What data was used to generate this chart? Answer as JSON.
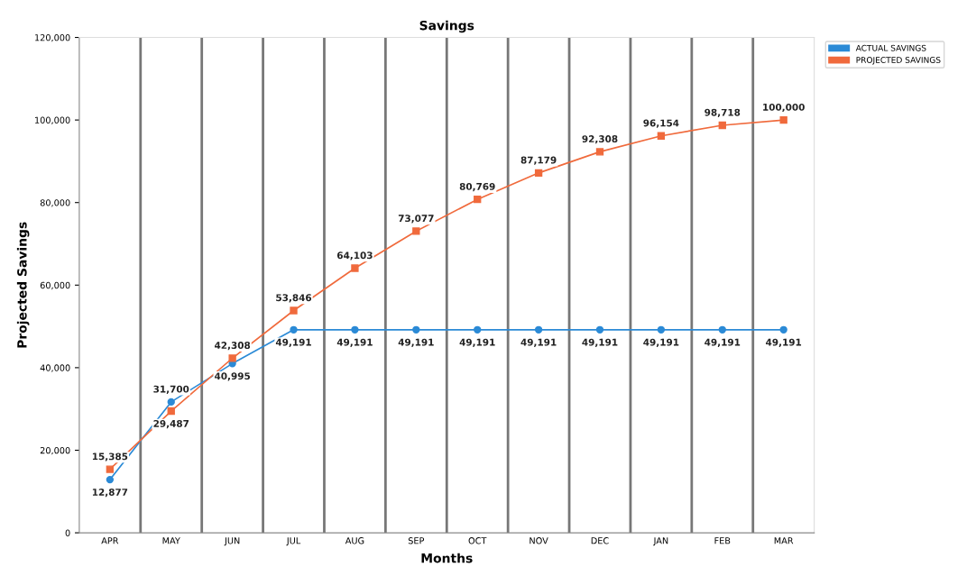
{
  "chart_data": {
    "type": "line",
    "title": "Savings",
    "xlabel": "Months",
    "ylabel": "Projected Savings",
    "categories": [
      "APR",
      "MAY",
      "JUN",
      "JUL",
      "AUG",
      "SEP",
      "OCT",
      "NOV",
      "DEC",
      "JAN",
      "FEB",
      "MAR"
    ],
    "series": [
      {
        "name": "ACTUAL SAVINGS",
        "color": "#2b8ad6",
        "marker": "circle",
        "values": [
          12877,
          31700,
          40995,
          49191,
          49191,
          49191,
          49191,
          49191,
          49191,
          49191,
          49191,
          49191
        ],
        "value_labels": [
          "12,877",
          "31,700",
          "40,995",
          "49,191",
          "49,191",
          "49,191",
          "49,191",
          "49,191",
          "49,191",
          "49,191",
          "49,191",
          "49,191"
        ]
      },
      {
        "name": "PROJECTED SAVINGS",
        "color": "#f06a3c",
        "marker": "square",
        "values": [
          15385,
          29487,
          42308,
          53846,
          64103,
          73077,
          80769,
          87179,
          92308,
          96154,
          98718,
          100000
        ],
        "value_labels": [
          "15,385",
          "29,487",
          "42,308",
          "53,846",
          "64,103",
          "73,077",
          "80,769",
          "87,179",
          "92,308",
          "96,154",
          "98,718",
          "100,000"
        ]
      }
    ],
    "ylim": [
      0,
      120000
    ],
    "yticks": [
      {
        "value": 0,
        "label": "0"
      },
      {
        "value": 20000,
        "label": "20,000"
      },
      {
        "value": 40000,
        "label": "40,000"
      },
      {
        "value": 60000,
        "label": "60,000"
      },
      {
        "value": 80000,
        "label": "80,000"
      },
      {
        "value": 100000,
        "label": "100,000"
      },
      {
        "value": 120000,
        "label": "120,000"
      }
    ],
    "grid": "x",
    "legend": "top right",
    "line_style": "solid"
  }
}
